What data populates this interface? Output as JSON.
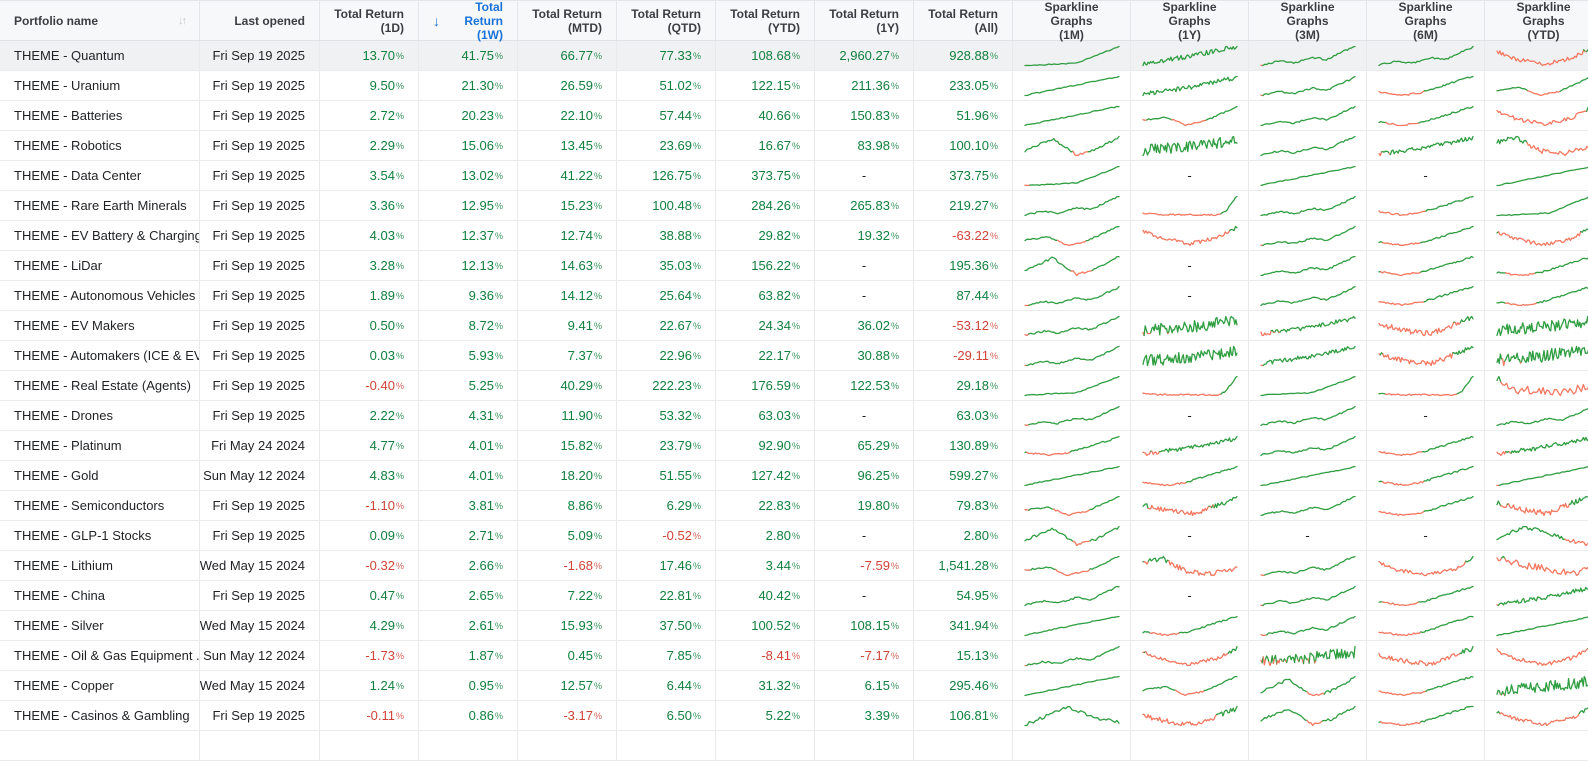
{
  "percent_sign": "%",
  "icons": {
    "sort_both": "↓↑",
    "sort_desc": "↓"
  },
  "colors": {
    "positive": "#11803f",
    "negative": "#d04438",
    "sorted_header": "#1872d9",
    "spark_up": "#2f9e41",
    "spark_down": "#f4775f"
  },
  "table": {
    "columns": [
      {
        "key": "name",
        "label": "Portfolio name",
        "type": "text"
      },
      {
        "key": "last_opened",
        "label": "Last opened",
        "type": "text"
      },
      {
        "key": "r1d",
        "label": "Total Return",
        "period": "(1D)",
        "type": "pct"
      },
      {
        "key": "r1w",
        "label": "Total Return",
        "period": "(1W)",
        "type": "pct",
        "sorted": "desc"
      },
      {
        "key": "rmtd",
        "label": "Total Return",
        "period": "(MTD)",
        "type": "pct"
      },
      {
        "key": "rqtd",
        "label": "Total Return",
        "period": "(QTD)",
        "type": "pct"
      },
      {
        "key": "rytd",
        "label": "Total Return",
        "period": "(YTD)",
        "type": "pct"
      },
      {
        "key": "r1y",
        "label": "Total Return",
        "period": "(1Y)",
        "type": "pct"
      },
      {
        "key": "rall",
        "label": "Total Return",
        "period": "(All)",
        "type": "pct"
      },
      {
        "key": "s1m",
        "label": "Sparkline Graphs",
        "period": "(1M)",
        "type": "spark"
      },
      {
        "key": "s1y",
        "label": "Sparkline Graphs",
        "period": "(1Y)",
        "type": "spark"
      },
      {
        "key": "s3m",
        "label": "Sparkline Graphs",
        "period": "(3M)",
        "type": "spark"
      },
      {
        "key": "s6m",
        "label": "Sparkline Graphs",
        "period": "(6M)",
        "type": "spark"
      },
      {
        "key": "sytd",
        "label": "Sparkline Graphs",
        "period": "(YTD)",
        "type": "spark"
      }
    ],
    "rows": [
      {
        "name": "THEME - Quantum",
        "last_opened": "Fri Sep 19 2025",
        "r1d": "13.70",
        "r1w": "41.75",
        "rmtd": "66.77",
        "rqtd": "77.33",
        "rytd": "108.68",
        "r1y": "2,960.27",
        "rall": "928.88",
        "highlight": true,
        "sparklines": [
          "up-late",
          "up-noisy",
          "up-wave",
          "up-wave",
          "valley-red"
        ]
      },
      {
        "name": "THEME - Uranium",
        "last_opened": "Fri Sep 19 2025",
        "r1d": "9.50",
        "r1w": "21.30",
        "rmtd": "26.59",
        "rqtd": "51.02",
        "rytd": "122.15",
        "r1y": "211.36",
        "rall": "233.05",
        "sparklines": [
          "up",
          "up-noisy",
          "up-wave",
          "red-then-up",
          "up-dip"
        ]
      },
      {
        "name": "THEME - Batteries",
        "last_opened": "Fri Sep 19 2025",
        "r1d": "2.72",
        "r1w": "20.23",
        "rmtd": "22.10",
        "rqtd": "57.44",
        "rytd": "40.66",
        "r1y": "150.83",
        "rall": "51.96",
        "sparklines": [
          "up",
          "up-dip",
          "up-wave",
          "red-then-up",
          "valley-red"
        ]
      },
      {
        "name": "THEME - Robotics",
        "last_opened": "Fri Sep 19 2025",
        "r1d": "2.29",
        "r1w": "15.06",
        "rmtd": "13.45",
        "rqtd": "23.69",
        "rytd": "16.67",
        "r1y": "83.98",
        "rall": "100.10",
        "sparklines": [
          "hump-dip",
          "vol-noisy",
          "up-wave",
          "up-noisy",
          "green-then-red"
        ]
      },
      {
        "name": "THEME - Data Center",
        "last_opened": "Fri Sep 19 2025",
        "r1d": "3.54",
        "r1w": "13.02",
        "rmtd": "41.22",
        "rqtd": "126.75",
        "rytd": "373.75",
        "r1y": "-",
        "rall": "373.75",
        "sparklines": [
          "up-late",
          null,
          "up",
          null,
          "up"
        ]
      },
      {
        "name": "THEME - Rare Earth Minerals",
        "last_opened": "Fri Sep 19 2025",
        "r1d": "3.36",
        "r1w": "12.95",
        "rmtd": "15.23",
        "rqtd": "100.48",
        "rytd": "284.26",
        "r1y": "265.83",
        "rall": "219.27",
        "sparklines": [
          "up-wave",
          "flat-spike",
          "up-wave",
          "red-then-up",
          "up-late"
        ]
      },
      {
        "name": "THEME - EV Battery & Charging",
        "last_opened": "Fri Sep 19 2025",
        "r1d": "4.03",
        "r1w": "12.37",
        "rmtd": "12.74",
        "rqtd": "38.88",
        "rytd": "29.82",
        "r1y": "19.32",
        "rall": "-63.22",
        "sparklines": [
          "up-dip",
          "valley-red",
          "up-wave",
          "red-then-up",
          "valley-red"
        ]
      },
      {
        "name": "THEME - LiDar",
        "last_opened": "Fri Sep 19 2025",
        "r1d": "3.28",
        "r1w": "12.13",
        "rmtd": "14.63",
        "rqtd": "35.03",
        "rytd": "156.22",
        "r1y": "-",
        "rall": "195.36",
        "sparklines": [
          "hump-dip",
          null,
          "up-wave",
          "red-then-up",
          "red-then-up"
        ]
      },
      {
        "name": "THEME - Autonomous Vehicles",
        "last_opened": "Fri Sep 19 2025",
        "r1d": "1.89",
        "r1w": "9.36",
        "rmtd": "14.12",
        "rqtd": "25.64",
        "rytd": "63.82",
        "r1y": "-",
        "rall": "87.44",
        "sparklines": [
          "up-wave",
          null,
          "up-wave",
          "red-then-up",
          "red-then-up"
        ]
      },
      {
        "name": "THEME - EV Makers",
        "last_opened": "Fri Sep 19 2025",
        "r1d": "0.50",
        "r1w": "8.72",
        "rmtd": "9.41",
        "rqtd": "22.67",
        "rytd": "24.34",
        "r1y": "36.02",
        "rall": "-53.12",
        "sparklines": [
          "up-wave",
          "vol-noisy",
          "up-noisy",
          "noisy-recover",
          "vol-noisy"
        ]
      },
      {
        "name": "THEME - Automakers (ICE & EV)",
        "last_opened": "Fri Sep 19 2025",
        "r1d": "0.03",
        "r1w": "5.93",
        "rmtd": "7.37",
        "rqtd": "22.96",
        "rytd": "22.17",
        "r1y": "30.88",
        "rall": "-29.11",
        "sparklines": [
          "up-wave",
          "vol-noisy",
          "up-noisy",
          "noisy-recover",
          "vol-noisy"
        ]
      },
      {
        "name": "THEME - Real Estate (Agents)",
        "last_opened": "Fri Sep 19 2025",
        "r1d": "-0.40",
        "r1w": "5.25",
        "rmtd": "40.29",
        "rqtd": "222.23",
        "rytd": "176.59",
        "r1y": "122.53",
        "rall": "29.18",
        "sparklines": [
          "up-late",
          "flat-spike",
          "up-late",
          "flat-spike",
          "flat-red"
        ]
      },
      {
        "name": "THEME - Drones",
        "last_opened": "Fri Sep 19 2025",
        "r1d": "2.22",
        "r1w": "4.31",
        "rmtd": "11.90",
        "rqtd": "53.32",
        "rytd": "63.03",
        "r1y": "-",
        "rall": "63.03",
        "sparklines": [
          "up-wave",
          null,
          "up-wave",
          null,
          "up-wave"
        ]
      },
      {
        "name": "THEME - Platinum",
        "last_opened": "Fri May 24 2024",
        "r1d": "4.77",
        "r1w": "4.01",
        "rmtd": "15.82",
        "rqtd": "23.79",
        "rytd": "92.90",
        "r1y": "65.29",
        "rall": "130.89",
        "sparklines": [
          "red-then-up",
          "up-noisy",
          "up-wave",
          "red-then-up",
          "up-noisy"
        ]
      },
      {
        "name": "THEME - Gold",
        "last_opened": "Sun May 12 2024",
        "r1d": "4.83",
        "r1w": "4.01",
        "rmtd": "18.20",
        "rqtd": "51.55",
        "rytd": "127.42",
        "r1y": "96.25",
        "rall": "599.27",
        "sparklines": [
          "up",
          "red-then-up",
          "up",
          "red-then-up",
          "up"
        ]
      },
      {
        "name": "THEME - Semiconductors",
        "last_opened": "Fri Sep 19 2025",
        "r1d": "-1.10",
        "r1w": "3.81",
        "rmtd": "8.86",
        "rqtd": "6.29",
        "rytd": "22.83",
        "r1y": "19.80",
        "rall": "79.83",
        "sparklines": [
          "up-dip",
          "noisy-recover",
          "up-wave",
          "red-then-up",
          "noisy-recover"
        ]
      },
      {
        "name": "THEME - GLP-1 Stocks",
        "last_opened": "Fri Sep 19 2025",
        "r1d": "0.09",
        "r1w": "2.71",
        "rmtd": "5.09",
        "rqtd": "-0.52",
        "rytd": "2.80",
        "r1y": "-",
        "rall": "2.80",
        "sparklines": [
          "hump-dip",
          null,
          null,
          null,
          "hump-down"
        ]
      },
      {
        "name": "THEME - Lithium",
        "last_opened": "Wed May 15 2024",
        "r1d": "-0.32",
        "r1w": "2.66",
        "rmtd": "-1.68",
        "rqtd": "17.46",
        "rytd": "3.44",
        "r1y": "-7.59",
        "rall": "1,541.28",
        "sparklines": [
          "up-dip",
          "green-then-red",
          "up-wave",
          "valley-red",
          "down-red"
        ]
      },
      {
        "name": "THEME - China",
        "last_opened": "Fri Sep 19 2025",
        "r1d": "0.47",
        "r1w": "2.65",
        "rmtd": "7.22",
        "rqtd": "22.81",
        "rytd": "40.42",
        "r1y": "-",
        "rall": "54.95",
        "sparklines": [
          "up-wave",
          null,
          "up-wave",
          "red-then-up",
          "up-noisy"
        ]
      },
      {
        "name": "THEME - Silver",
        "last_opened": "Wed May 15 2024",
        "r1d": "4.29",
        "r1w": "2.61",
        "rmtd": "15.93",
        "rqtd": "37.50",
        "rytd": "100.52",
        "r1y": "108.15",
        "rall": "341.94",
        "sparklines": [
          "up",
          "red-then-up",
          "up-wave",
          "red-then-up",
          "up"
        ]
      },
      {
        "name": "THEME - Oil & Gas Equipment ...",
        "last_opened": "Sun May 12 2024",
        "r1d": "-1.73",
        "r1w": "1.87",
        "rmtd": "0.45",
        "rqtd": "7.85",
        "rytd": "-8.41",
        "r1y": "-7.17",
        "rall": "15.13",
        "sparklines": [
          "up-wave",
          "valley-red",
          "vol-noisy",
          "noisy-recover",
          "valley-red"
        ]
      },
      {
        "name": "THEME - Copper",
        "last_opened": "Wed May 15 2024",
        "r1d": "1.24",
        "r1w": "0.95",
        "rmtd": "12.57",
        "rqtd": "6.44",
        "rytd": "31.32",
        "r1y": "6.15",
        "rall": "295.46",
        "sparklines": [
          "up",
          "up-dip",
          "hump-dip",
          "red-then-up",
          "vol-noisy"
        ]
      },
      {
        "name": "THEME - Casinos & Gambling",
        "last_opened": "Fri Sep 19 2025",
        "r1d": "-0.11",
        "r1w": "0.86",
        "rmtd": "-3.17",
        "rqtd": "6.50",
        "rytd": "5.22",
        "r1y": "3.39",
        "rall": "106.81",
        "sparklines": [
          "hump",
          "noisy-recover",
          "hump-dip",
          "red-then-up",
          "valley-red"
        ]
      }
    ]
  }
}
